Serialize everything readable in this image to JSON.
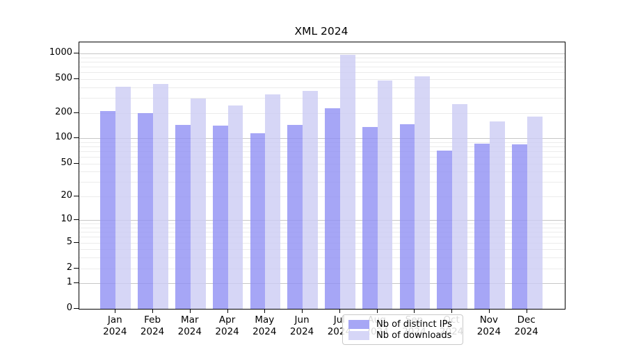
{
  "chart_data": {
    "type": "bar",
    "title": "XML 2024",
    "categories": [
      "Jan",
      "Feb",
      "Mar",
      "Apr",
      "May",
      "Jun",
      "Jul",
      "Aug",
      "Sep",
      "Oct",
      "Nov",
      "Dec"
    ],
    "x_sublabel_year": "2024",
    "series": [
      {
        "name": "Nb of distinct IPs",
        "color": "rgba(144,144,244,0.8)",
        "legend_color": "#a6a6f5",
        "values": [
          208,
          199,
          143,
          142,
          115,
          145,
          225,
          135,
          147,
          72,
          86,
          85
        ]
      },
      {
        "name": "Nb of downloads",
        "color": "rgba(204,204,244,0.8)",
        "legend_color": "#d6d6f7",
        "values": [
          408,
          436,
          295,
          242,
          330,
          364,
          958,
          480,
          540,
          254,
          157,
          181
        ]
      }
    ],
    "xlabel": "",
    "ylabel": "",
    "yscale": "log10(1+x)",
    "yticks": [
      0,
      1,
      2,
      5,
      10,
      20,
      50,
      100,
      200,
      500,
      1000
    ],
    "ylim": [
      0,
      1100
    ],
    "grid": {
      "on": true,
      "major_at": [
        1,
        10,
        100,
        1000
      ],
      "minor_multipliers": [
        2,
        3,
        4,
        5,
        6,
        7,
        8,
        9
      ],
      "major_color": "#c6c6c6",
      "minor_color": "#ebebeb"
    },
    "legend": {
      "position": "bottom-center-inside",
      "entries": [
        "Nb of distinct IPs",
        "Nb of downloads"
      ]
    }
  }
}
